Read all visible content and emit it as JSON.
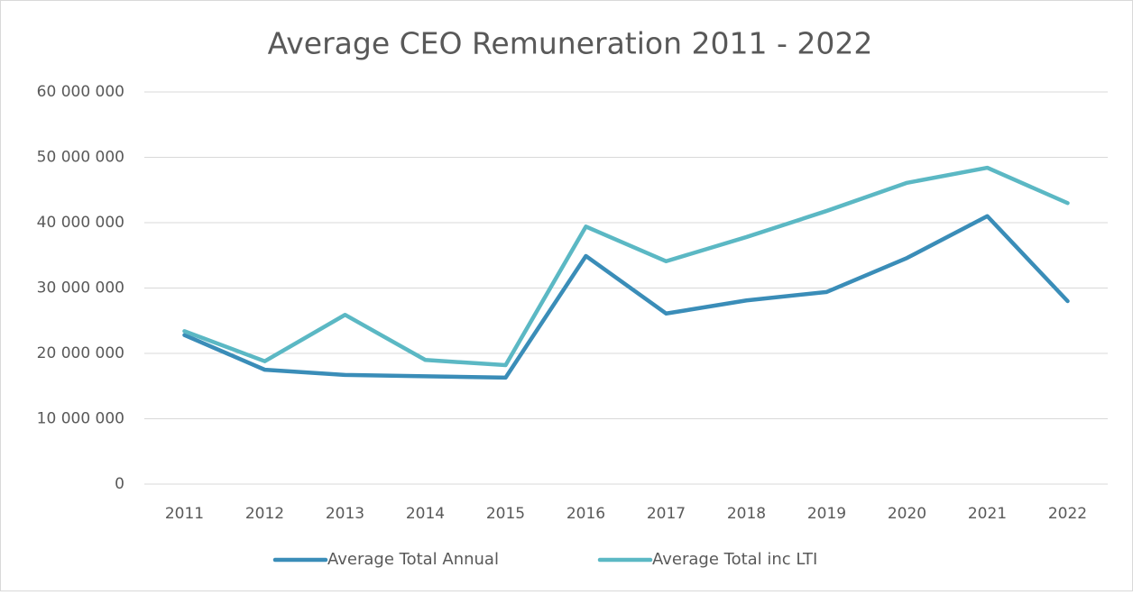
{
  "chart_data": {
    "type": "line",
    "title": "Average CEO Remuneration 2011 - 2022",
    "categories": [
      "2011",
      "2012",
      "2013",
      "2014",
      "2015",
      "2016",
      "2017",
      "2018",
      "2019",
      "2020",
      "2021",
      "2022"
    ],
    "series": [
      {
        "name": "Average Total Annual",
        "color": "#3a8db8",
        "values": [
          22800000,
          17500000,
          16700000,
          16500000,
          16300000,
          34900000,
          26100000,
          28100000,
          29400000,
          34600000,
          41000000,
          28000000
        ]
      },
      {
        "name": "Average Total inc LTI",
        "color": "#5bb8c4",
        "values": [
          23400000,
          18800000,
          25900000,
          19000000,
          18200000,
          39400000,
          34100000,
          37800000,
          41800000,
          46100000,
          48400000,
          43000000
        ]
      }
    ],
    "ylim": [
      0,
      60000000
    ],
    "yticks": [
      0,
      {
        "value": 10000000,
        "label": "10 000 000"
      },
      {
        "value": 20000000,
        "label": "20 000 000"
      },
      {
        "value": 30000000,
        "label": "30 000 000"
      },
      {
        "value": 40000000,
        "label": "40 000 000"
      },
      {
        "value": 50000000,
        "label": "50 000 000"
      },
      {
        "value": 60000000,
        "label": "60 000 000"
      }
    ],
    "grid": true,
    "legend": "bottom"
  }
}
